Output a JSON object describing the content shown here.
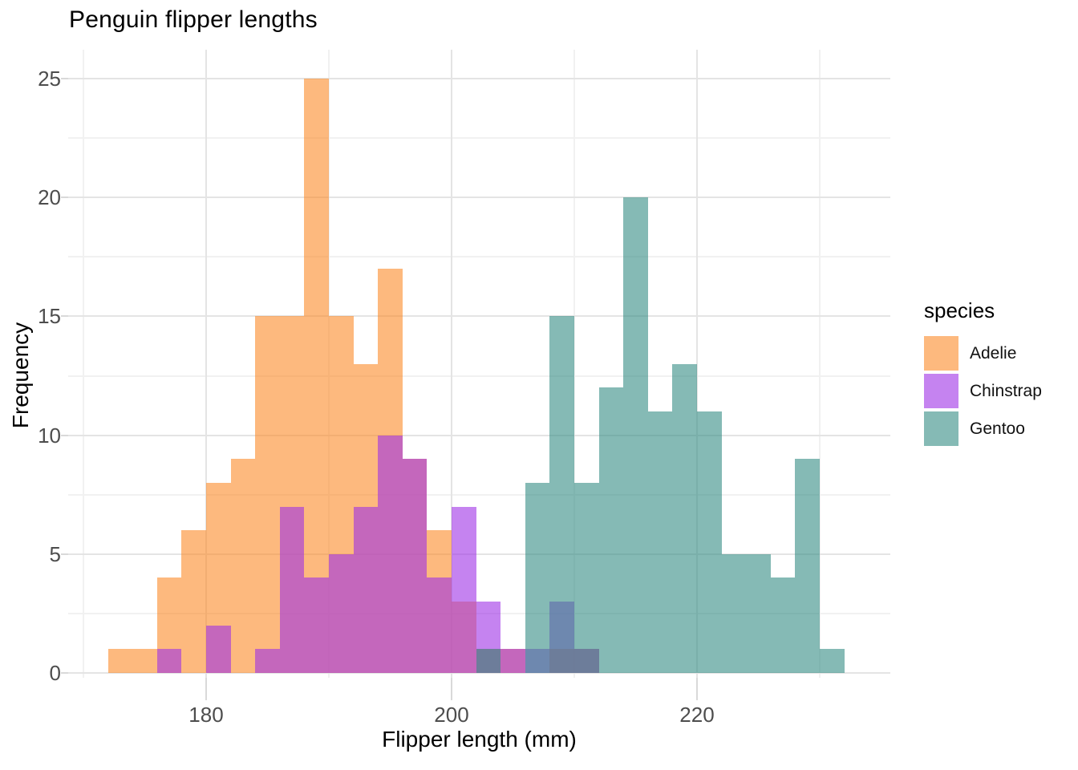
{
  "chart_data": {
    "type": "histogram",
    "title": "Penguin flipper lengths",
    "xlabel": "Flipper length (mm)",
    "ylabel": "Frequency",
    "legend_title": "species",
    "legend_position": "right",
    "grid": "on",
    "bin_width": 2,
    "xlim": [
      169,
      236
    ],
    "ylim": [
      0,
      26.4
    ],
    "x_major_ticks": [
      180,
      200,
      220
    ],
    "x_minor_ticks": [
      170,
      190,
      210,
      230
    ],
    "y_major_ticks": [
      0,
      5,
      10,
      15,
      20,
      25
    ],
    "y_minor_ticks": [
      2.5,
      7.5,
      12.5,
      17.5,
      22.5
    ],
    "series": [
      {
        "name": "Adelie",
        "fill": "rgba(252,138,40,0.6)",
        "legend_swatch_hex": "#FDB97E",
        "bin_start": 172,
        "counts": [
          1,
          1,
          4,
          6,
          8,
          9,
          15,
          15,
          25,
          15,
          13,
          17,
          9,
          6,
          3,
          1,
          1,
          0,
          1,
          1
        ]
      },
      {
        "name": "Chinstrap",
        "fill": "rgba(158,48,230,0.6)",
        "legend_swatch_hex": "#C583F0",
        "bin_start": 176,
        "counts": [
          1,
          0,
          2,
          0,
          1,
          7,
          4,
          5,
          7,
          10,
          9,
          4,
          7,
          3,
          1,
          1,
          3,
          1
        ]
      },
      {
        "name": "Gentoo",
        "fill": "rgba(52,140,132,0.6)",
        "legend_swatch_hex": "#85BAB5",
        "bin_start": 202,
        "counts": [
          1,
          0,
          8,
          15,
          8,
          12,
          20,
          11,
          13,
          11,
          5,
          5,
          4,
          9,
          1
        ]
      }
    ]
  }
}
